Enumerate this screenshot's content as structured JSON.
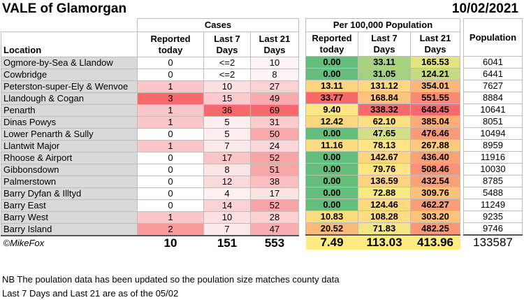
{
  "title": "VALE of Glamorgan",
  "date": "10/02/2021",
  "headers": {
    "location": "Location",
    "cases_group": "Cases",
    "per100k_group": "Per 100,000 Population",
    "reported_today_1": "Reported",
    "reported_today_2": "today",
    "last7_1": "Last 7",
    "last7_2": "Days",
    "last21_1": "Last 21",
    "last21_2": "Days",
    "population": "Population"
  },
  "rows": [
    {
      "location": "Ogmore-by-Sea & Llandow",
      "reported": "0",
      "last7": "<=2",
      "last21": "10",
      "p_rep": "0.00",
      "p_7": "33.11",
      "p_21": "165.53",
      "population": "6041",
      "c_rep": "#ffffff",
      "c_7": "#ffffff",
      "c_21": "#fdf3f3",
      "cp_rep": "#63be7b",
      "cp_7": "#a8d27f",
      "cp_21": "#e2e383"
    },
    {
      "location": "Cowbridge",
      "reported": "0",
      "last7": "<=2",
      "last21": "8",
      "p_rep": "0.00",
      "p_7": "31.05",
      "p_21": "124.21",
      "population": "6441",
      "c_rep": "#ffffff",
      "c_7": "#ffffff",
      "c_21": "#fdf5f5",
      "cp_rep": "#63be7b",
      "cp_7": "#a4d17f",
      "cp_21": "#c6db81"
    },
    {
      "location": "Peterston-super-Ely & Wenvoe",
      "reported": "1",
      "last7": "10",
      "last21": "27",
      "p_rep": "13.11",
      "p_7": "131.12",
      "p_21": "354.01",
      "population": "7627",
      "c_rep": "#fbc6c8",
      "c_7": "#fbdfe1",
      "c_21": "#fbd2d4",
      "cp_rep": "#fdd57f",
      "cp_7": "#fed880",
      "cp_21": "#fcb87a"
    },
    {
      "location": "Llandough & Cogan",
      "reported": "3",
      "last7": "15",
      "last21": "49",
      "p_rep": "33.77",
      "p_7": "168.84",
      "p_21": "551.55",
      "population": "8884",
      "c_rep": "#f8696b",
      "c_7": "#fbcacc",
      "c_21": "#f9aaac",
      "cp_rep": "#f8696b",
      "cp_7": "#fcc47c",
      "cp_21": "#f98a73"
    },
    {
      "location": "Penarth",
      "reported": "1",
      "last7": "36",
      "last21": "69",
      "p_rep": "9.40",
      "p_7": "338.32",
      "p_21": "648.45",
      "population": "10641",
      "c_rep": "#fbc6c8",
      "c_7": "#f8696b",
      "c_21": "#f8696b",
      "cp_rep": "#ffe583",
      "cp_7": "#f8696b",
      "cp_21": "#f8696b"
    },
    {
      "location": "Dinas Powys",
      "reported": "1",
      "last7": "5",
      "last21": "31",
      "p_rep": "12.42",
      "p_7": "62.10",
      "p_21": "385.04",
      "population": "8051",
      "c_rep": "#fbc6c8",
      "c_7": "#fceeef",
      "c_21": "#fbcbcd",
      "cp_rep": "#fed880",
      "cp_7": "#fee082",
      "cp_21": "#fcad78"
    },
    {
      "location": "Lower Penarth & Sully",
      "reported": "0",
      "last7": "5",
      "last21": "50",
      "p_rep": "0.00",
      "p_7": "47.65",
      "p_21": "476.46",
      "population": "10494",
      "c_rep": "#ffffff",
      "c_7": "#fceeef",
      "c_21": "#f9a8aa",
      "cp_rep": "#63be7b",
      "cp_7": "#d2df82",
      "cp_21": "#fa9a76"
    },
    {
      "location": "Llantwit Major",
      "reported": "1",
      "last7": "7",
      "last21": "24",
      "p_rep": "11.16",
      "p_7": "78.13",
      "p_21": "267.88",
      "population": "8959",
      "c_rep": "#fbc6c8",
      "c_7": "#fbe8e9",
      "c_21": "#fbd7d9",
      "cp_rep": "#fedc81",
      "cp_7": "#ffe483",
      "cp_21": "#fdca7d"
    },
    {
      "location": "Rhoose & Airport",
      "reported": "0",
      "last7": "17",
      "last21": "52",
      "p_rep": "0.00",
      "p_7": "142.67",
      "p_21": "436.40",
      "population": "11916",
      "c_rep": "#ffffff",
      "c_7": "#fbc4c6",
      "c_21": "#f9a4a6",
      "cp_rep": "#63be7b",
      "cp_7": "#fdd47f",
      "cp_21": "#fba277"
    },
    {
      "location": "Gibbonsdown",
      "reported": "0",
      "last7": "8",
      "last21": "51",
      "p_rep": "0.00",
      "p_7": "79.76",
      "p_21": "508.46",
      "population": "10030",
      "c_rep": "#ffffff",
      "c_7": "#fbe5e6",
      "c_21": "#f9a6a8",
      "cp_rep": "#63be7b",
      "cp_7": "#ffe483",
      "cp_21": "#fa9374"
    },
    {
      "location": "Palmerstown",
      "reported": "0",
      "last7": "12",
      "last21": "38",
      "p_rep": "0.00",
      "p_7": "136.59",
      "p_21": "432.54",
      "population": "8785",
      "c_rep": "#ffffff",
      "c_7": "#fbd8da",
      "c_21": "#fabfc1",
      "cp_rep": "#63be7b",
      "cp_7": "#fdd57f",
      "cp_21": "#fba377"
    },
    {
      "location": "Barry Dyfan & Illtyd",
      "reported": "0",
      "last7": "4",
      "last21": "17",
      "p_rep": "0.00",
      "p_7": "72.88",
      "p_21": "309.76",
      "population": "5488",
      "c_rep": "#ffffff",
      "c_7": "#fcf0f1",
      "c_21": "#fce4e5",
      "cp_rep": "#63be7b",
      "cp_7": "#f6e883",
      "cp_21": "#fcc17b"
    },
    {
      "location": "Barry East",
      "reported": "0",
      "last7": "14",
      "last21": "52",
      "p_rep": "0.00",
      "p_7": "124.46",
      "p_21": "462.27",
      "population": "11249",
      "c_rep": "#ffffff",
      "c_7": "#fbd1d3",
      "c_21": "#f9a4a6",
      "cp_rep": "#63be7b",
      "cp_7": "#fed97f",
      "cp_21": "#fb9d76"
    },
    {
      "location": "Barry West",
      "reported": "1",
      "last7": "10",
      "last21": "28",
      "p_rep": "10.83",
      "p_7": "108.28",
      "p_21": "303.20",
      "population": "9235",
      "c_rep": "#fbc6c8",
      "c_7": "#fbdfe1",
      "c_21": "#fbd0d2",
      "cp_rep": "#fedd81",
      "cp_7": "#fedc81",
      "cp_21": "#fdc37c"
    },
    {
      "location": "Barry Island",
      "reported": "2",
      "last7": "7",
      "last21": "47",
      "p_rep": "20.52",
      "p_7": "71.83",
      "p_21": "482.25",
      "population": "9746",
      "c_rep": "#fa9a9c",
      "c_7": "#fbe8e9",
      "c_21": "#f9afb1",
      "cp_rep": "#fcba7a",
      "cp_7": "#f4e783",
      "cp_21": "#fa9875"
    }
  ],
  "totals": {
    "credit": "©MikeFox",
    "reported": "10",
    "last7": "151",
    "last21": "553",
    "p_rep": "7.49",
    "p_7": "113.03",
    "p_21": "413.96",
    "population": "133587",
    "cp_rep": "#ffeb84",
    "cp_7": "#ffeb84",
    "cp_21": "#ffeb84"
  },
  "notes": [
    "NB The poulation data has been updated so the poulation size matches county data",
    "Last 7 Days and Last 21 are as of the 05/02"
  ],
  "colors": {
    "location_bg": "#d9d9d9",
    "header_bg": "#ffffff"
  }
}
